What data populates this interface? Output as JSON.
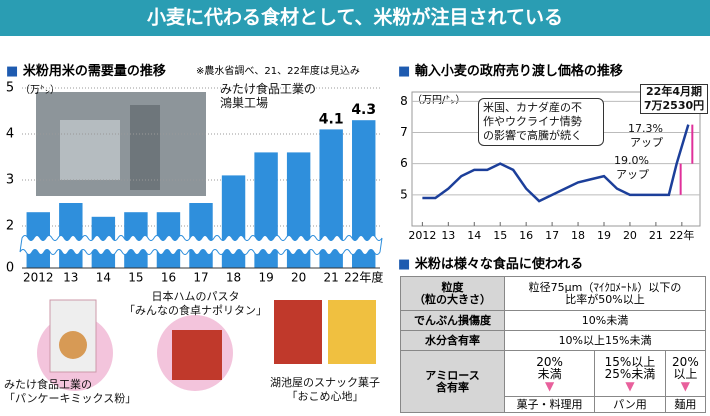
{
  "header": {
    "title": "小麦に代わる食材として、米粉が注目されている"
  },
  "chart_data": [
    {
      "type": "bar",
      "title": "米粉用米の需要量の推移",
      "note": "※農水省調べ、21、22年度は見込み",
      "ylabel": "（万㌧）",
      "categories": [
        "2012",
        "13",
        "14",
        "15",
        "16",
        "17",
        "18",
        "19",
        "20",
        "21",
        "22年度"
      ],
      "values": [
        2.3,
        2.5,
        2.2,
        2.3,
        2.3,
        2.5,
        3.1,
        3.6,
        3.6,
        4.1,
        4.3
      ],
      "value_labels": [
        null,
        null,
        null,
        null,
        null,
        null,
        null,
        null,
        null,
        "4.1",
        "4.3"
      ],
      "color": "#2f8fdc",
      "ylim": [
        0,
        5
      ],
      "yticks": [
        0,
        2,
        3,
        4,
        5
      ],
      "axis_break": true,
      "grid": true,
      "photo_caption": [
        "みたけ食品工業の",
        "鴻巣工場"
      ]
    },
    {
      "type": "line",
      "title": "輸入小麦の政府売り渡し価格の推移",
      "ylabel": "（万円/㌧）",
      "x": [
        2012,
        2012.5,
        2013,
        2013.5,
        2014,
        2014.5,
        2015,
        2015.5,
        2016,
        2016.5,
        2017,
        2017.5,
        2018,
        2018.5,
        2019,
        2019.5,
        2020,
        2020.5,
        2021,
        2021.5,
        2021.8,
        2022.25
      ],
      "values": [
        4.9,
        4.9,
        5.2,
        5.6,
        5.8,
        5.8,
        6.0,
        5.8,
        5.2,
        4.8,
        5.0,
        5.2,
        5.4,
        5.5,
        5.6,
        5.2,
        5.0,
        5.0,
        5.0,
        5.0,
        6.0,
        7.253
      ],
      "value_labels": [
        null,
        null,
        null,
        null,
        null,
        null,
        null,
        null,
        null,
        null,
        null,
        null,
        null,
        null,
        null,
        null,
        null,
        null,
        null,
        null,
        null,
        "7万2530円"
      ],
      "color": "#1c3f9a",
      "xlim": [
        2011.6,
        2022.7
      ],
      "ylim": [
        4,
        8.3
      ],
      "yticks": [
        5,
        6,
        7,
        8
      ],
      "xticks": [
        2012,
        {
          "value": 2013,
          "label": "13"
        },
        {
          "value": 2014,
          "label": "14"
        },
        {
          "value": 2015,
          "label": "15"
        },
        {
          "value": 2016,
          "label": "16"
        },
        {
          "value": 2017,
          "label": "17"
        },
        {
          "value": 2018,
          "label": "18"
        },
        {
          "value": 2019,
          "label": "19"
        },
        {
          "value": 2020,
          "label": "20"
        },
        {
          "value": 2021,
          "label": "21"
        },
        {
          "value": 2022,
          "label": "22年"
        }
      ],
      "grid": true,
      "annotations": {
        "callout": [
          "米国、カナダ産の不",
          "作やウクライナ情勢",
          "の影響で高騰が続く"
        ],
        "period": "22年4月期",
        "rise1": [
          "19.0%",
          "アップ"
        ],
        "rise2": [
          "17.3%",
          "アップ"
        ]
      }
    }
  ],
  "table": {
    "title": "米粉は様々な食品に使われる",
    "rows": [
      [
        "粒度",
        "（粒の大きさ）",
        "粒径75μm（ﾏｲｸﾛﾒｰﾄﾙ）以下の",
        "比率が50%以上"
      ],
      [
        "でんぷん損傷度",
        "10%未満"
      ],
      [
        "水分含有率",
        "10%以上15%未満"
      ],
      [
        "アミロース",
        "含有率",
        "20%",
        "未満",
        "15%以上",
        "25%未満",
        "20%",
        "以上"
      ]
    ],
    "uses": [
      "菓子・料理用",
      "パン用",
      "麺用"
    ]
  },
  "products": [
    [
      "みたけ食品工業の",
      "「パンケーキミックス粉」"
    ],
    [
      "日本ハムのパスタ",
      "「みんなの食卓ナポリタン」"
    ],
    [
      "湖池屋のスナック菓子",
      "「おこめ心地」"
    ]
  ]
}
